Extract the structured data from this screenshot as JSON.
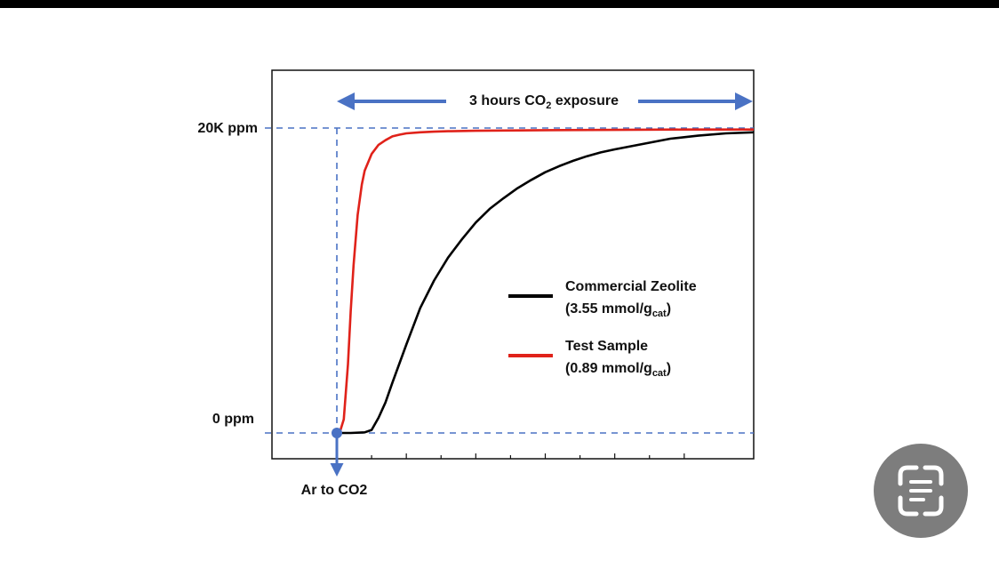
{
  "chart_data": {
    "type": "line",
    "x_unit": "hours",
    "xlim": [
      0,
      3
    ],
    "ylim": [
      0,
      20000
    ],
    "x_tick_values": [
      0.25,
      0.5,
      0.75,
      1.0,
      1.25,
      1.5,
      1.75,
      2.0,
      2.25,
      2.5
    ],
    "y_tick_labels": [
      {
        "value": 20000,
        "label": "20K ppm"
      },
      {
        "value": 0,
        "label": "0 ppm"
      }
    ],
    "annotations": {
      "exposure_label_main": "3 hours CO",
      "exposure_label_sub": "2",
      "exposure_label_end": " exposure",
      "switch_label": "Ar to CO2"
    },
    "series": [
      {
        "name": "Commercial Zeolite",
        "detail_prefix": "(3.55 mmol/g",
        "detail_sub": "cat",
        "detail_suffix": ")",
        "color": "#000000",
        "x": [
          0,
          0.1,
          0.2,
          0.25,
          0.3,
          0.35,
          0.4,
          0.5,
          0.6,
          0.7,
          0.8,
          0.9,
          1.0,
          1.1,
          1.2,
          1.3,
          1.4,
          1.5,
          1.6,
          1.7,
          1.8,
          1.9,
          2.0,
          2.2,
          2.4,
          2.6,
          2.8,
          3.0
        ],
        "y": [
          0,
          0,
          40,
          200,
          1000,
          2000,
          3300,
          5800,
          8200,
          10000,
          11500,
          12700,
          13800,
          14700,
          15400,
          16050,
          16600,
          17100,
          17500,
          17850,
          18150,
          18400,
          18600,
          18950,
          19300,
          19500,
          19650,
          19720
        ]
      },
      {
        "name": "Test Sample",
        "detail_prefix": "(0.89 mmol/g",
        "detail_sub": "cat",
        "detail_suffix": ")",
        "color": "#e0221a",
        "x": [
          0,
          0.02,
          0.05,
          0.08,
          0.1,
          0.12,
          0.15,
          0.18,
          0.2,
          0.25,
          0.3,
          0.35,
          0.4,
          0.45,
          0.5,
          0.6,
          0.7,
          0.8,
          1.0,
          1.5,
          2.0,
          2.5,
          3.0
        ],
        "y": [
          0,
          0,
          900,
          4500,
          8000,
          11000,
          14300,
          16300,
          17200,
          18300,
          18900,
          19200,
          19450,
          19560,
          19650,
          19720,
          19760,
          19790,
          19820,
          19860,
          19880,
          19900,
          19900
        ]
      }
    ]
  }
}
